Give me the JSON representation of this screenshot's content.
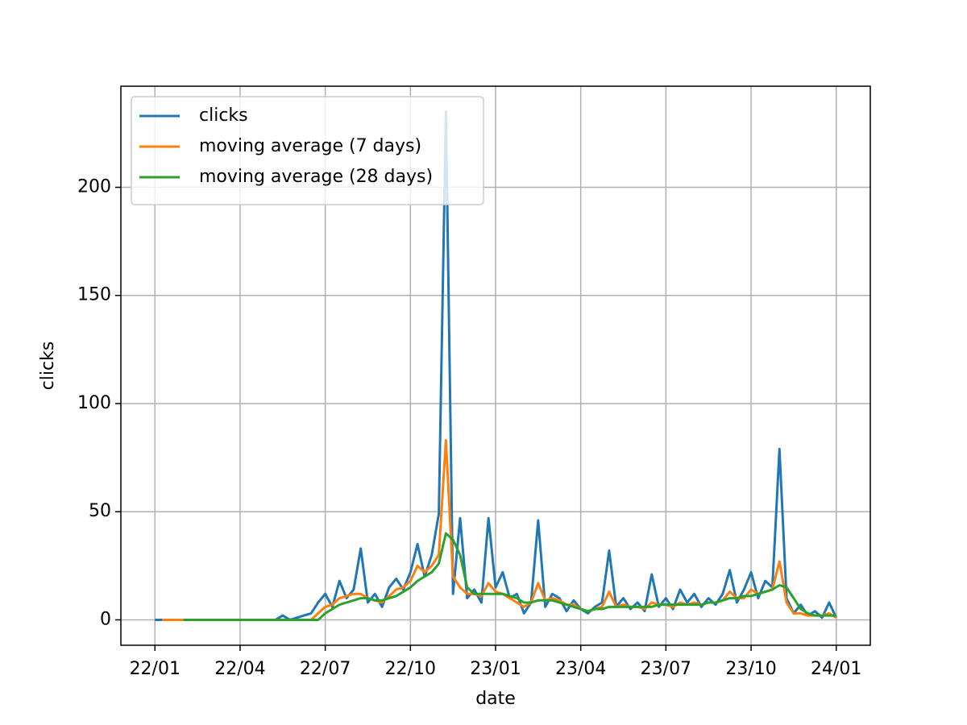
{
  "chart_data": {
    "type": "line",
    "xlabel": "date",
    "ylabel": "clicks",
    "x": [
      0,
      0.25,
      0.5,
      0.75,
      1,
      1.25,
      1.5,
      1.75,
      2,
      2.25,
      2.5,
      2.75,
      3,
      3.25,
      3.5,
      3.75,
      4,
      4.25,
      4.5,
      4.75,
      5,
      5.25,
      5.5,
      5.75,
      6,
      6.25,
      6.5,
      6.75,
      7,
      7.25,
      7.5,
      7.75,
      8,
      8.25,
      8.5,
      8.75,
      9,
      9.25,
      9.5,
      9.75,
      10,
      10.25,
      10.5,
      10.75,
      11,
      11.25,
      11.5,
      11.75,
      12,
      12.25,
      12.5,
      12.75,
      13,
      13.25,
      13.5,
      13.75,
      14,
      14.25,
      14.5,
      14.75,
      15,
      15.25,
      15.5,
      15.75,
      16,
      16.25,
      16.5,
      16.75,
      17,
      17.25,
      17.5,
      17.75,
      18,
      18.25,
      18.5,
      18.75,
      19,
      19.25,
      19.5,
      19.75,
      20,
      20.25,
      20.5,
      20.75,
      21,
      21.25,
      21.5,
      21.75,
      22,
      22.25,
      22.5,
      22.75,
      23,
      23.25,
      23.5,
      23.75,
      24
    ],
    "series": [
      {
        "name": "clicks",
        "color": "#1f77b4",
        "values": [
          0,
          0,
          0,
          0,
          0,
          0,
          0,
          0,
          0,
          0,
          0,
          0,
          0,
          0,
          0,
          0,
          0,
          0,
          2,
          0,
          1,
          2,
          3,
          8,
          12,
          6,
          18,
          10,
          14,
          33,
          8,
          12,
          6,
          15,
          19,
          14,
          22,
          35,
          20,
          30,
          49,
          235,
          12,
          47,
          10,
          14,
          8,
          47,
          15,
          22,
          10,
          12,
          3,
          8,
          46,
          6,
          12,
          10,
          4,
          9,
          5,
          3,
          6,
          8,
          32,
          6,
          10,
          5,
          8,
          4,
          21,
          6,
          10,
          5,
          14,
          8,
          12,
          6,
          10,
          7,
          12,
          23,
          8,
          14,
          22,
          10,
          18,
          15,
          79,
          10,
          3,
          7,
          2,
          4,
          1,
          8,
          1
        ]
      },
      {
        "name": "moving average (7 days)",
        "color": "#ff7f0e",
        "values": [
          null,
          0,
          0,
          0,
          0,
          0,
          0,
          0,
          0,
          0,
          0,
          0,
          0,
          0,
          0,
          0,
          0,
          0,
          0,
          0,
          0,
          0,
          0,
          3,
          6,
          7,
          10,
          11,
          12,
          12,
          10,
          9,
          8,
          11,
          14,
          15,
          18,
          25,
          22,
          25,
          30,
          83,
          20,
          15,
          12,
          12,
          11,
          17,
          13,
          12,
          10,
          8,
          6,
          8,
          17,
          9,
          10,
          9,
          7,
          7,
          5,
          4,
          5,
          6,
          13,
          6,
          7,
          6,
          6,
          5,
          8,
          7,
          7,
          6,
          8,
          7,
          8,
          7,
          8,
          8,
          9,
          13,
          10,
          10,
          14,
          12,
          13,
          14,
          27,
          8,
          3,
          3,
          2,
          2,
          2,
          3,
          1
        ]
      },
      {
        "name": "moving average (28 days)",
        "color": "#2ca02c",
        "values": [
          null,
          null,
          null,
          null,
          0,
          0,
          0,
          0,
          0,
          0,
          0,
          0,
          0,
          0,
          0,
          0,
          0,
          0,
          0,
          0,
          0,
          0,
          0,
          0,
          3,
          5,
          7,
          8,
          9,
          10,
          10,
          9,
          9,
          10,
          11,
          13,
          15,
          18,
          20,
          22,
          26,
          40,
          37,
          30,
          15,
          12,
          12,
          12,
          12,
          12,
          11,
          10,
          8,
          8,
          9,
          9,
          9,
          8,
          7,
          6,
          5,
          4,
          5,
          5,
          6,
          6,
          6,
          6,
          6,
          6,
          6,
          7,
          7,
          7,
          7,
          7,
          7,
          7,
          8,
          8,
          9,
          10,
          10,
          11,
          11,
          12,
          13,
          14,
          16,
          15,
          10,
          5,
          3,
          2,
          2,
          2,
          2
        ]
      }
    ],
    "xlim": [
      -1.2,
      25.2
    ],
    "xticks": [
      {
        "value": 0,
        "label": "22/01"
      },
      {
        "value": 3,
        "label": "22/04"
      },
      {
        "value": 6,
        "label": "22/07"
      },
      {
        "value": 9,
        "label": "22/10"
      },
      {
        "value": 12,
        "label": "23/01"
      },
      {
        "value": 15,
        "label": "23/04"
      },
      {
        "value": 18,
        "label": "23/07"
      },
      {
        "value": 21,
        "label": "23/10"
      },
      {
        "value": 24,
        "label": "24/01"
      }
    ],
    "ylim": [
      -11.75,
      246.75
    ],
    "yticks": [
      0,
      50,
      100,
      150,
      200
    ],
    "grid": true,
    "legend": "upper-left"
  }
}
